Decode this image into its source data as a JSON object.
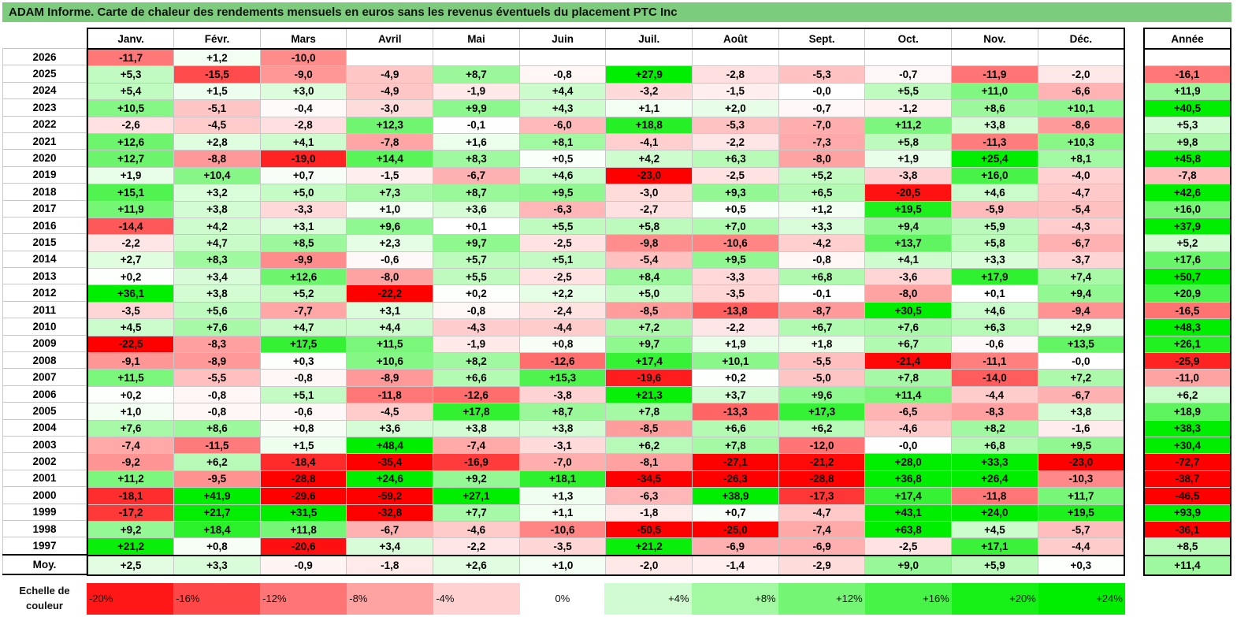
{
  "title": "ADAM Informe. Carte de chaleur des rendements mensuels en euros sans les revenus éventuels du placement PTC Inc",
  "chart_data": {
    "type": "heatmap",
    "months": [
      "Janv.",
      "Févr.",
      "Mars",
      "Avril",
      "Mai",
      "Juin",
      "Juil.",
      "Août",
      "Sept.",
      "Oct.",
      "Nov.",
      "Déc."
    ],
    "annual_header": "Année",
    "rows": [
      {
        "year": "2026",
        "values": [
          "-11,7",
          "+1,2",
          "-10,0",
          "",
          "",
          "",
          "",
          "",
          "",
          "",
          "",
          ""
        ],
        "annual": ""
      },
      {
        "year": "2025",
        "values": [
          "+5,3",
          "-15,5",
          "-9,0",
          "-4,9",
          "+8,7",
          "-0,8",
          "+27,9",
          "-2,8",
          "-5,3",
          "-0,7",
          "-11,9",
          "-2,0"
        ],
        "annual": "-16,1"
      },
      {
        "year": "2024",
        "values": [
          "+5,4",
          "+1,5",
          "+3,0",
          "-4,9",
          "-1,9",
          "+4,4",
          "-3,2",
          "-1,5",
          "-0,0",
          "+5,5",
          "+11,0",
          "-6,6"
        ],
        "annual": "+11,9"
      },
      {
        "year": "2023",
        "values": [
          "+10,5",
          "-5,1",
          "-0,4",
          "-3,0",
          "+9,9",
          "+4,3",
          "+1,1",
          "+2,0",
          "-0,7",
          "-1,2",
          "+8,6",
          "+10,1"
        ],
        "annual": "+40,5"
      },
      {
        "year": "2022",
        "values": [
          "-2,6",
          "-4,5",
          "-2,8",
          "+12,3",
          "-0,1",
          "-6,0",
          "+18,8",
          "-5,3",
          "-7,0",
          "+11,2",
          "+3,8",
          "-8,6"
        ],
        "annual": "+5,3"
      },
      {
        "year": "2021",
        "values": [
          "+12,6",
          "+2,8",
          "+4,1",
          "-7,8",
          "+1,6",
          "+8,1",
          "-4,1",
          "-2,2",
          "-7,3",
          "+5,8",
          "-11,3",
          "+10,3"
        ],
        "annual": "+9,8"
      },
      {
        "year": "2020",
        "values": [
          "+12,7",
          "-8,8",
          "-19,0",
          "+14,4",
          "+8,3",
          "+0,5",
          "+4,2",
          "+6,3",
          "-8,0",
          "+1,9",
          "+25,4",
          "+8,1"
        ],
        "annual": "+45,8"
      },
      {
        "year": "2019",
        "values": [
          "+1,9",
          "+10,4",
          "+0,7",
          "-1,5",
          "-6,7",
          "+4,6",
          "-23,0",
          "-2,5",
          "+5,2",
          "-3,8",
          "+16,0",
          "-4,0"
        ],
        "annual": "-7,8"
      },
      {
        "year": "2018",
        "values": [
          "+15,1",
          "+3,2",
          "+5,0",
          "+7,3",
          "+8,7",
          "+9,5",
          "-3,0",
          "+9,3",
          "+6,5",
          "-20,5",
          "+4,6",
          "-4,7"
        ],
        "annual": "+42,6"
      },
      {
        "year": "2017",
        "values": [
          "+11,9",
          "+3,8",
          "-3,3",
          "+1,0",
          "+3,6",
          "-6,3",
          "-2,7",
          "+0,5",
          "+1,2",
          "+19,5",
          "-5,9",
          "-5,4"
        ],
        "annual": "+16,0"
      },
      {
        "year": "2016",
        "values": [
          "-14,4",
          "+4,2",
          "+3,1",
          "+9,6",
          "+0,1",
          "+5,5",
          "+5,8",
          "+7,0",
          "+3,3",
          "+9,4",
          "+5,9",
          "-4,3"
        ],
        "annual": "+37,9"
      },
      {
        "year": "2015",
        "values": [
          "-2,2",
          "+4,7",
          "+8,5",
          "+2,3",
          "+9,7",
          "-2,5",
          "-9,8",
          "-10,6",
          "-4,2",
          "+13,7",
          "+5,8",
          "-6,7"
        ],
        "annual": "+5,2"
      },
      {
        "year": "2014",
        "values": [
          "+2,7",
          "+8,3",
          "-9,9",
          "-0,6",
          "+5,7",
          "+5,1",
          "-5,4",
          "+9,5",
          "-0,8",
          "+4,1",
          "+3,3",
          "-3,7"
        ],
        "annual": "+17,6"
      },
      {
        "year": "2013",
        "values": [
          "+0,2",
          "+3,4",
          "+12,6",
          "-8,0",
          "+5,5",
          "-2,5",
          "+8,4",
          "-3,3",
          "+6,8",
          "-3,6",
          "+17,9",
          "+7,4"
        ],
        "annual": "+50,7"
      },
      {
        "year": "2012",
        "values": [
          "+36,1",
          "+3,8",
          "+5,2",
          "-22,2",
          "+0,2",
          "+2,2",
          "+5,0",
          "-3,5",
          "-0,1",
          "-8,0",
          "+0,1",
          "+9,4"
        ],
        "annual": "+20,9"
      },
      {
        "year": "2011",
        "values": [
          "-3,5",
          "+5,6",
          "-7,7",
          "+3,1",
          "-0,8",
          "-2,4",
          "-8,5",
          "-13,8",
          "-8,7",
          "+30,5",
          "+4,6",
          "-9,4"
        ],
        "annual": "-16,5"
      },
      {
        "year": "2010",
        "values": [
          "+4,5",
          "+7,6",
          "+4,7",
          "+4,4",
          "-4,3",
          "-4,4",
          "+7,2",
          "-2,2",
          "+6,7",
          "+7,6",
          "+6,3",
          "+2,9"
        ],
        "annual": "+48,3"
      },
      {
        "year": "2009",
        "values": [
          "-22,5",
          "-8,3",
          "+17,5",
          "+11,5",
          "-1,9",
          "+0,8",
          "+9,7",
          "+1,9",
          "+1,8",
          "+6,7",
          "-0,6",
          "+13,5"
        ],
        "annual": "+26,1"
      },
      {
        "year": "2008",
        "values": [
          "-9,1",
          "-8,9",
          "+0,3",
          "+10,6",
          "+8,2",
          "-12,6",
          "+17,4",
          "+10,1",
          "-5,5",
          "-21,4",
          "-11,1",
          "-0,0"
        ],
        "annual": "-25,9"
      },
      {
        "year": "2007",
        "values": [
          "+11,5",
          "-5,5",
          "-0,8",
          "-8,9",
          "+6,6",
          "+15,3",
          "-19,6",
          "+0,2",
          "-5,0",
          "+7,8",
          "-14,0",
          "+7,2"
        ],
        "annual": "-11,0"
      },
      {
        "year": "2006",
        "values": [
          "+0,2",
          "-0,8",
          "+5,1",
          "-11,8",
          "-12,6",
          "-3,8",
          "+21,3",
          "+3,7",
          "+9,6",
          "+11,4",
          "-4,4",
          "-6,7"
        ],
        "annual": "+6,2"
      },
      {
        "year": "2005",
        "values": [
          "+1,0",
          "-0,8",
          "-0,6",
          "-4,5",
          "+17,8",
          "+8,7",
          "+7,8",
          "-13,3",
          "+17,3",
          "-6,5",
          "-8,3",
          "+3,8"
        ],
        "annual": "+18,9"
      },
      {
        "year": "2004",
        "values": [
          "+7,6",
          "+8,6",
          "+0,8",
          "+3,6",
          "+3,8",
          "+3,8",
          "-8,5",
          "+6,6",
          "+6,2",
          "-4,6",
          "+8,2",
          "-1,6"
        ],
        "annual": "+38,3"
      },
      {
        "year": "2003",
        "values": [
          "-7,4",
          "-11,5",
          "+1,5",
          "+48,4",
          "-7,4",
          "-3,1",
          "+6,2",
          "+7,8",
          "-12,0",
          "-0,0",
          "+6,8",
          "+9,5"
        ],
        "annual": "+30,4"
      },
      {
        "year": "2002",
        "values": [
          "-9,2",
          "+6,2",
          "-18,4",
          "-35,4",
          "-16,9",
          "-7,0",
          "-8,1",
          "-27,1",
          "-21,2",
          "+28,0",
          "+33,3",
          "-23,0"
        ],
        "annual": "-72,7"
      },
      {
        "year": "2001",
        "values": [
          "+11,2",
          "-9,5",
          "-28,8",
          "+24,6",
          "+9,2",
          "+18,1",
          "-34,5",
          "-26,3",
          "-28,8",
          "+36,8",
          "+26,4",
          "-10,3"
        ],
        "annual": "-38,7"
      },
      {
        "year": "2000",
        "values": [
          "-18,1",
          "+41,9",
          "-29,6",
          "-59,2",
          "+27,1",
          "+1,3",
          "-6,3",
          "+38,9",
          "-17,3",
          "+17,4",
          "-11,8",
          "+11,7"
        ],
        "annual": "-46,5"
      },
      {
        "year": "1999",
        "values": [
          "-17,2",
          "+21,7",
          "+31,5",
          "-32,8",
          "+7,7",
          "+1,1",
          "-1,8",
          "+0,7",
          "-4,7",
          "+43,1",
          "+24,0",
          "+19,5"
        ],
        "annual": "+93,9"
      },
      {
        "year": "1998",
        "values": [
          "+9,2",
          "+18,4",
          "+11,8",
          "-6,7",
          "-4,6",
          "-10,6",
          "-50,5",
          "-25,0",
          "-7,4",
          "+63,8",
          "+4,5",
          "-5,7"
        ],
        "annual": "-36,1"
      },
      {
        "year": "1997",
        "values": [
          "+21,2",
          "+0,8",
          "-20,6",
          "+3,4",
          "-2,2",
          "-3,5",
          "+21,2",
          "-6,9",
          "-6,9",
          "-2,5",
          "+17,1",
          "-4,4"
        ],
        "annual": "+8,5"
      }
    ],
    "average": {
      "label": "Moy.",
      "values": [
        "+2,5",
        "+3,3",
        "-0,9",
        "-1,8",
        "+2,6",
        "+1,0",
        "-2,0",
        "-1,4",
        "-2,9",
        "+9,0",
        "+5,9",
        "+0,3"
      ],
      "annual": "+11,4"
    },
    "scale_label": "Echelle de couleur",
    "scale": [
      "-20%",
      "-16%",
      "-12%",
      "-8%",
      "-4%",
      "0%",
      "+4%",
      "+8%",
      "+12%",
      "+16%",
      "+20%",
      "+24%"
    ],
    "colors": {
      "negative_max": "#ff0000",
      "neutral": "#ffffff",
      "positive_max": "#00ee00"
    }
  }
}
